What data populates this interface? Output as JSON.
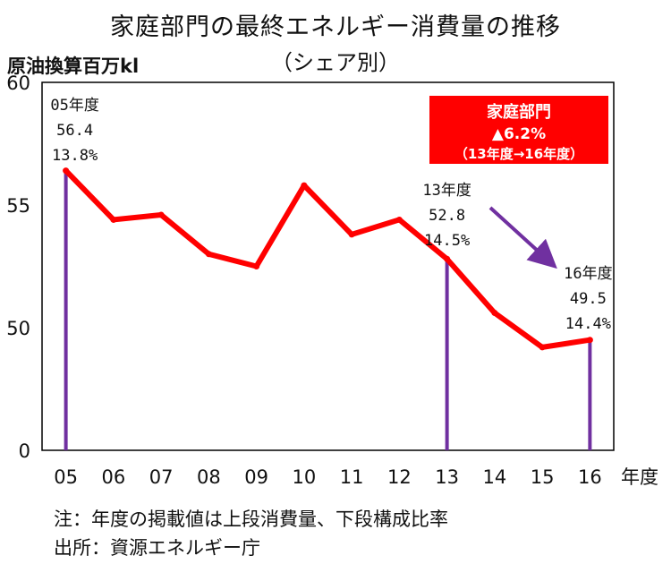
{
  "title": "家庭部門の最終エネルギー消費量の推移",
  "subtitle": "（シェア別）",
  "notes": {
    "note": "注：年度の掲載値は上段消費量、下段構成比率",
    "source": "出所：資源エネルギー庁"
  },
  "colors": {
    "line": "#ff0000",
    "marker": "#7030a0",
    "box": "#ff0000",
    "arrow": "#7030a0"
  },
  "chart_data": {
    "type": "line",
    "title": "家庭部門の最終エネルギー消費量の推移",
    "ylabel": "原油換算百万kl",
    "xlabel": "年度",
    "categories": [
      "05",
      "06",
      "07",
      "08",
      "09",
      "10",
      "11",
      "12",
      "13",
      "14",
      "15",
      "16"
    ],
    "values": [
      56.4,
      54.4,
      54.6,
      53.0,
      52.5,
      55.8,
      53.8,
      54.4,
      52.8,
      50.6,
      49.2,
      49.5
    ],
    "ylim": [
      0,
      60
    ],
    "yticks": [
      0,
      50,
      55,
      60
    ],
    "axis_break": true,
    "grid": false,
    "annotations": [
      {
        "category": "05",
        "label": "05年度",
        "value": "56.4",
        "share": "13.8%"
      },
      {
        "category": "13",
        "label": "13年度",
        "value": "52.8",
        "share": "14.5%"
      },
      {
        "category": "16",
        "label": "16年度",
        "value": "49.5",
        "share": "14.4%"
      }
    ],
    "callout": {
      "line1": "家庭部門",
      "line2": "▲6.2%",
      "line3": "（13年度→16年度）"
    }
  }
}
